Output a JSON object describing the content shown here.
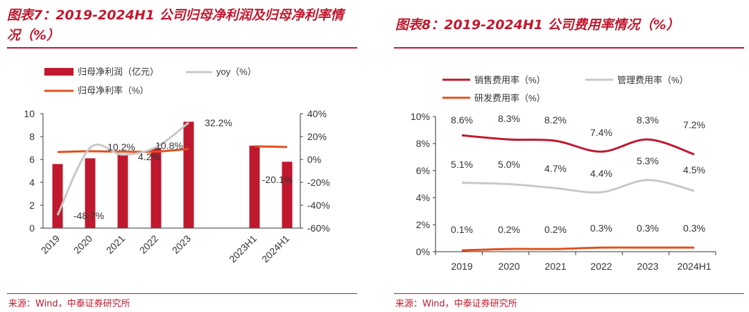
{
  "left": {
    "title": "图表7：2019-2024H1 公司归母净利润及归母净利率情况（%）",
    "source": "来源：Wind，中泰证券研究所"
  },
  "right": {
    "title": "图表8：2019-2024H1 公司费用率情况（%）",
    "source": "来源：Wind，中泰证券研究所"
  },
  "colors": {
    "red": "#c0182e",
    "gray": "#c8c8c8",
    "orange": "#e0501e",
    "axis": "#333333"
  },
  "chart_data": [
    {
      "type": "bar",
      "categories": [
        "2019",
        "2020",
        "2021",
        "2022",
        "2023",
        "2023H1",
        "2024H1"
      ],
      "series": [
        {
          "name": "归母净利润（亿元）",
          "type": "bar",
          "axis": "left",
          "values": [
            5.6,
            6.1,
            6.5,
            7.0,
            9.3,
            7.2,
            5.8
          ]
        },
        {
          "name": "yoy（%）",
          "type": "line",
          "axis": "right",
          "values": [
            -48.7,
            10.2,
            4.2,
            10.8,
            32.2,
            null,
            -20.1
          ],
          "labels": [
            "-48.7%",
            "10.2%",
            "4.2%",
            "10.8%",
            "32.2%",
            "",
            "-20.1%"
          ]
        },
        {
          "name": "归母净利率（%）",
          "type": "line",
          "axis": "right",
          "values": [
            6.5,
            7.2,
            6.8,
            6.9,
            9.2,
            11.5,
            10.9
          ]
        }
      ],
      "ylim_left": [
        0,
        10
      ],
      "yticks_left": [
        "0",
        "2",
        "4",
        "6",
        "8",
        "10"
      ],
      "ylim_right": [
        -60,
        40
      ],
      "yticks_right": [
        "-60%",
        "-40%",
        "-20%",
        "0%",
        "20%",
        "40%"
      ],
      "legend_position": "top-left"
    },
    {
      "type": "line",
      "categories": [
        "2019",
        "2020",
        "2021",
        "2022",
        "2023",
        "2024H1"
      ],
      "series": [
        {
          "name": "销售费用率（%）",
          "values": [
            8.6,
            8.3,
            8.2,
            7.4,
            8.3,
            7.2
          ],
          "labels": [
            "8.6%",
            "8.3%",
            "8.2%",
            "7.4%",
            "8.3%",
            "7.2%"
          ]
        },
        {
          "name": "管理费用率（%）",
          "values": [
            5.1,
            5.0,
            4.7,
            4.4,
            5.3,
            4.5
          ],
          "labels": [
            "5.1%",
            "5.0%",
            "4.7%",
            "4.4%",
            "5.3%",
            "4.5%"
          ]
        },
        {
          "name": "研发费用率（%）",
          "values": [
            0.1,
            0.2,
            0.2,
            0.3,
            0.3,
            0.3
          ],
          "labels": [
            "0.1%",
            "0.2%",
            "0.2%",
            "0.3%",
            "0.3%",
            "0.3%"
          ]
        }
      ],
      "ylim": [
        0,
        10
      ],
      "yticks": [
        "0%",
        "2%",
        "4%",
        "6%",
        "8%",
        "10%"
      ],
      "legend_position": "top"
    }
  ]
}
